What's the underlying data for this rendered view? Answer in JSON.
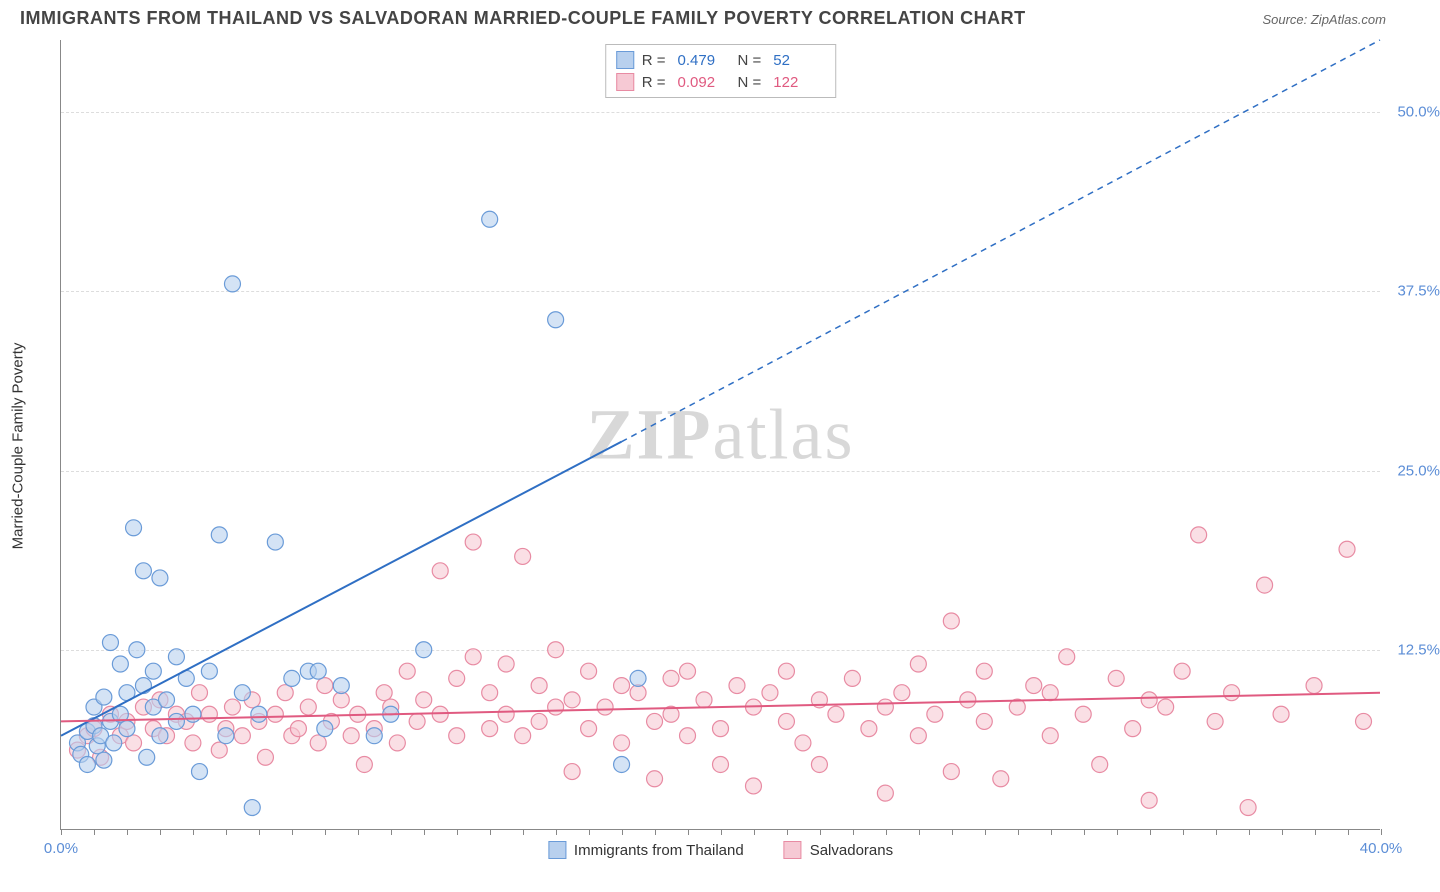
{
  "title": "IMMIGRANTS FROM THAILAND VS SALVADORAN MARRIED-COUPLE FAMILY POVERTY CORRELATION CHART",
  "source_label": "Source: ",
  "source_name": "ZipAtlas.com",
  "yaxis_title": "Married-Couple Family Poverty",
  "watermark_a": "ZIP",
  "watermark_b": "atlas",
  "chart": {
    "type": "scatter",
    "xlim": [
      0,
      40
    ],
    "ylim": [
      0,
      55
    ],
    "xtick_labels": {
      "0": "0.0%",
      "40": "40.0%"
    },
    "xtick_minor_step": 1,
    "ytick_positions": [
      12.5,
      25.0,
      37.5,
      50.0
    ],
    "ytick_labels": [
      "12.5%",
      "25.0%",
      "37.5%",
      "50.0%"
    ],
    "grid_color": "#dddddd",
    "background_color": "#ffffff",
    "axis_color": "#888888",
    "series": [
      {
        "name": "Immigrants from Thailand",
        "color_fill": "#b8d0ee",
        "color_stroke": "#6a9bd8",
        "trend_color": "#2f6fc4",
        "R": "0.479",
        "N": "52",
        "trend": {
          "x1": 0,
          "y1": 6.5,
          "x2_solid": 17,
          "y2_solid": 27,
          "x2": 40,
          "y2": 55
        },
        "points": [
          [
            0.5,
            6.0
          ],
          [
            0.6,
            5.2
          ],
          [
            0.8,
            6.8
          ],
          [
            0.8,
            4.5
          ],
          [
            1.0,
            7.2
          ],
          [
            1.0,
            8.5
          ],
          [
            1.1,
            5.8
          ],
          [
            1.2,
            6.5
          ],
          [
            1.3,
            9.2
          ],
          [
            1.3,
            4.8
          ],
          [
            1.5,
            7.5
          ],
          [
            1.5,
            13.0
          ],
          [
            1.6,
            6.0
          ],
          [
            1.8,
            11.5
          ],
          [
            1.8,
            8.0
          ],
          [
            2.0,
            9.5
          ],
          [
            2.0,
            7.0
          ],
          [
            2.2,
            21.0
          ],
          [
            2.3,
            12.5
          ],
          [
            2.5,
            10.0
          ],
          [
            2.5,
            18.0
          ],
          [
            2.8,
            8.5
          ],
          [
            2.8,
            11.0
          ],
          [
            3.0,
            6.5
          ],
          [
            3.0,
            17.5
          ],
          [
            3.2,
            9.0
          ],
          [
            3.5,
            12.0
          ],
          [
            3.5,
            7.5
          ],
          [
            3.8,
            10.5
          ],
          [
            4.0,
            8.0
          ],
          [
            4.2,
            4.0
          ],
          [
            4.5,
            11.0
          ],
          [
            4.8,
            20.5
          ],
          [
            5.0,
            6.5
          ],
          [
            5.2,
            38.0
          ],
          [
            5.5,
            9.5
          ],
          [
            5.8,
            1.5
          ],
          [
            6.0,
            8.0
          ],
          [
            6.5,
            20.0
          ],
          [
            7.0,
            10.5
          ],
          [
            7.5,
            11.0
          ],
          [
            8.0,
            7.0
          ],
          [
            8.5,
            10.0
          ],
          [
            9.5,
            6.5
          ],
          [
            10.0,
            8.0
          ],
          [
            11.0,
            12.5
          ],
          [
            13.0,
            42.5
          ],
          [
            15.0,
            35.5
          ],
          [
            17.0,
            4.5
          ],
          [
            17.5,
            10.5
          ],
          [
            7.8,
            11.0
          ],
          [
            2.6,
            5.0
          ]
        ]
      },
      {
        "name": "Salvadorans",
        "color_fill": "#f6c9d4",
        "color_stroke": "#e88ba3",
        "trend_color": "#e05a80",
        "R": "0.092",
        "N": "122",
        "trend": {
          "x1": 0,
          "y1": 7.5,
          "x2_solid": 40,
          "y2_solid": 9.5,
          "x2": 40,
          "y2": 9.5
        },
        "points": [
          [
            0.5,
            5.5
          ],
          [
            0.8,
            6.5
          ],
          [
            1.0,
            7.0
          ],
          [
            1.2,
            5.0
          ],
          [
            1.5,
            8.0
          ],
          [
            1.8,
            6.5
          ],
          [
            2.0,
            7.5
          ],
          [
            2.2,
            6.0
          ],
          [
            2.5,
            8.5
          ],
          [
            2.8,
            7.0
          ],
          [
            3.0,
            9.0
          ],
          [
            3.2,
            6.5
          ],
          [
            3.5,
            8.0
          ],
          [
            3.8,
            7.5
          ],
          [
            4.0,
            6.0
          ],
          [
            4.2,
            9.5
          ],
          [
            4.5,
            8.0
          ],
          [
            4.8,
            5.5
          ],
          [
            5.0,
            7.0
          ],
          [
            5.2,
            8.5
          ],
          [
            5.5,
            6.5
          ],
          [
            5.8,
            9.0
          ],
          [
            6.0,
            7.5
          ],
          [
            6.2,
            5.0
          ],
          [
            6.5,
            8.0
          ],
          [
            6.8,
            9.5
          ],
          [
            7.0,
            6.5
          ],
          [
            7.2,
            7.0
          ],
          [
            7.5,
            8.5
          ],
          [
            7.8,
            6.0
          ],
          [
            8.0,
            10.0
          ],
          [
            8.2,
            7.5
          ],
          [
            8.5,
            9.0
          ],
          [
            8.8,
            6.5
          ],
          [
            9.0,
            8.0
          ],
          [
            9.2,
            4.5
          ],
          [
            9.5,
            7.0
          ],
          [
            9.8,
            9.5
          ],
          [
            10.0,
            8.5
          ],
          [
            10.2,
            6.0
          ],
          [
            10.5,
            11.0
          ],
          [
            10.8,
            7.5
          ],
          [
            11.0,
            9.0
          ],
          [
            11.5,
            8.0
          ],
          [
            11.5,
            18.0
          ],
          [
            12.0,
            10.5
          ],
          [
            12.0,
            6.5
          ],
          [
            12.5,
            12.0
          ],
          [
            12.5,
            20.0
          ],
          [
            13.0,
            7.0
          ],
          [
            13.0,
            9.5
          ],
          [
            13.5,
            8.0
          ],
          [
            13.5,
            11.5
          ],
          [
            14.0,
            6.5
          ],
          [
            14.0,
            19.0
          ],
          [
            14.5,
            10.0
          ],
          [
            14.5,
            7.5
          ],
          [
            15.0,
            8.5
          ],
          [
            15.0,
            12.5
          ],
          [
            15.5,
            9.0
          ],
          [
            15.5,
            4.0
          ],
          [
            16.0,
            7.0
          ],
          [
            16.0,
            11.0
          ],
          [
            16.5,
            8.5
          ],
          [
            17.0,
            6.0
          ],
          [
            17.0,
            10.0
          ],
          [
            17.5,
            9.5
          ],
          [
            18.0,
            7.5
          ],
          [
            18.0,
            3.5
          ],
          [
            18.5,
            10.5
          ],
          [
            18.5,
            8.0
          ],
          [
            19.0,
            6.5
          ],
          [
            19.0,
            11.0
          ],
          [
            19.5,
            9.0
          ],
          [
            20.0,
            7.0
          ],
          [
            20.0,
            4.5
          ],
          [
            20.5,
            10.0
          ],
          [
            21.0,
            8.5
          ],
          [
            21.0,
            3.0
          ],
          [
            21.5,
            9.5
          ],
          [
            22.0,
            7.5
          ],
          [
            22.0,
            11.0
          ],
          [
            22.5,
            6.0
          ],
          [
            23.0,
            9.0
          ],
          [
            23.0,
            4.5
          ],
          [
            23.5,
            8.0
          ],
          [
            24.0,
            10.5
          ],
          [
            24.5,
            7.0
          ],
          [
            25.0,
            8.5
          ],
          [
            25.0,
            2.5
          ],
          [
            25.5,
            9.5
          ],
          [
            26.0,
            6.5
          ],
          [
            26.0,
            11.5
          ],
          [
            26.5,
            8.0
          ],
          [
            27.0,
            14.5
          ],
          [
            27.0,
            4.0
          ],
          [
            27.5,
            9.0
          ],
          [
            28.0,
            7.5
          ],
          [
            28.0,
            11.0
          ],
          [
            28.5,
            3.5
          ],
          [
            29.0,
            8.5
          ],
          [
            29.5,
            10.0
          ],
          [
            30.0,
            6.5
          ],
          [
            30.0,
            9.5
          ],
          [
            30.5,
            12.0
          ],
          [
            31.0,
            8.0
          ],
          [
            31.5,
            4.5
          ],
          [
            32.0,
            10.5
          ],
          [
            32.5,
            7.0
          ],
          [
            33.0,
            9.0
          ],
          [
            33.0,
            2.0
          ],
          [
            33.5,
            8.5
          ],
          [
            34.0,
            11.0
          ],
          [
            34.5,
            20.5
          ],
          [
            35.0,
            7.5
          ],
          [
            35.5,
            9.5
          ],
          [
            36.0,
            1.5
          ],
          [
            36.5,
            17.0
          ],
          [
            37.0,
            8.0
          ],
          [
            38.0,
            10.0
          ],
          [
            39.0,
            19.5
          ],
          [
            39.5,
            7.5
          ]
        ]
      }
    ]
  },
  "legend_top": {
    "r_label": "R =",
    "n_label": "N ="
  }
}
